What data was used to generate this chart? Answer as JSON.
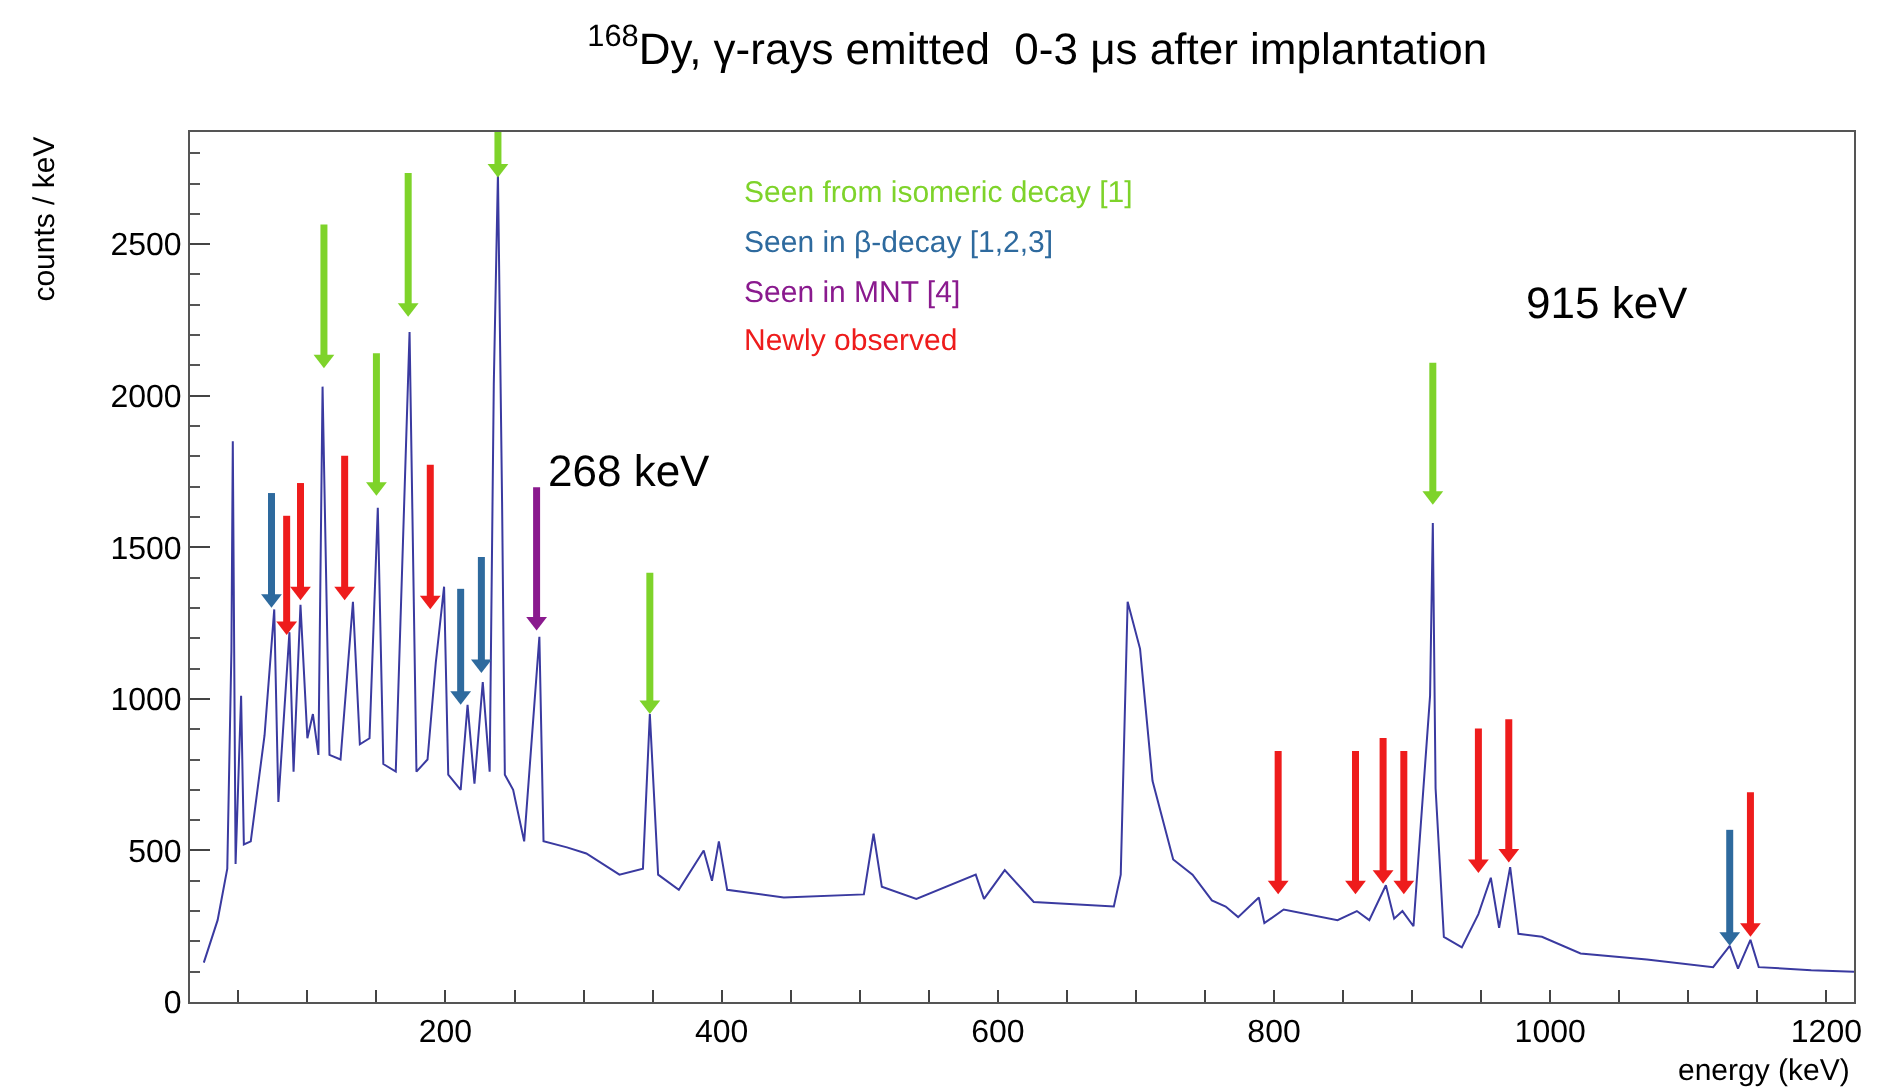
{
  "chart_data": {
    "type": "line",
    "title": "$^{168}$Dy, γ-rays emitted  0-3 μs after implantation",
    "xlabel": "energy (keV)",
    "ylabel": "counts / keV",
    "xlim": [
      15,
      1220
    ],
    "ylim": [
      0,
      2870
    ],
    "xticks": [
      {
        "value": 50,
        "label": null
      },
      {
        "value": 100,
        "label": null
      },
      {
        "value": 150,
        "label": null
      },
      200,
      {
        "value": 250,
        "label": null
      },
      {
        "value": 300,
        "label": null
      },
      {
        "value": 350,
        "label": null
      },
      400,
      {
        "value": 450,
        "label": null
      },
      {
        "value": 500,
        "label": null
      },
      {
        "value": 550,
        "label": null
      },
      600,
      {
        "value": 650,
        "label": null
      },
      {
        "value": 700,
        "label": null
      },
      {
        "value": 750,
        "label": null
      },
      800,
      {
        "value": 850,
        "label": null
      },
      {
        "value": 900,
        "label": null
      },
      {
        "value": 950,
        "label": null
      },
      1000,
      {
        "value": 1050,
        "label": null
      },
      {
        "value": 1100,
        "label": null
      },
      {
        "value": 1150,
        "label": null
      },
      1200
    ],
    "yticks": [
      0,
      500,
      1000,
      1500,
      2000,
      2500
    ],
    "legend": false,
    "marker": "none",
    "line_style": "solid",
    "series": [
      {
        "color": "#3a3aa0",
        "x": [
          25,
          35,
          42,
          45,
          46,
          48,
          52,
          54,
          59,
          69,
          76,
          79,
          87,
          90,
          95,
          100,
          104,
          108,
          111,
          116,
          124,
          133,
          138,
          145,
          151,
          155,
          164,
          174,
          179,
          187,
          193,
          199,
          202,
          211,
          216,
          221,
          227,
          232,
          235,
          238,
          241,
          243,
          249,
          257,
          268,
          271,
          288,
          302,
          326,
          343,
          348,
          354,
          369,
          387,
          393,
          398,
          404,
          445,
          503,
          510,
          516,
          541,
          584,
          590,
          605,
          626,
          684,
          689,
          694,
          703,
          712,
          727,
          741,
          755,
          765,
          774,
          789,
          793,
          807,
          846,
          860,
          869,
          881,
          887,
          893,
          901,
          913,
          915,
          917,
          923,
          936,
          948,
          957,
          963,
          971,
          977,
          994,
          1022,
          1070,
          1118,
          1130,
          1136,
          1145,
          1151,
          1189,
          1220
        ],
        "values": [
          130,
          270,
          440,
          1160,
          1850,
          455,
          1010,
          520,
          530,
          880,
          1295,
          660,
          1220,
          760,
          1310,
          870,
          950,
          815,
          2030,
          815,
          800,
          1320,
          850,
          870,
          1630,
          785,
          760,
          2210,
          760,
          800,
          1120,
          1370,
          750,
          700,
          980,
          720,
          1055,
          760,
          2040,
          2735,
          1650,
          750,
          700,
          530,
          1205,
          530,
          510,
          490,
          420,
          440,
          950,
          420,
          370,
          500,
          400,
          530,
          370,
          345,
          355,
          555,
          380,
          340,
          420,
          340,
          435,
          330,
          315,
          420,
          1320,
          1165,
          730,
          470,
          420,
          335,
          315,
          280,
          345,
          260,
          305,
          270,
          300,
          270,
          385,
          275,
          300,
          250,
          1010,
          1580,
          705,
          215,
          180,
          290,
          410,
          245,
          445,
          225,
          215,
          160,
          140,
          115,
          185,
          110,
          205,
          115,
          105,
          100
        ]
      },
      {
        "type": "scatter",
        "name": "Seen from isomeric decay [1]",
        "color": "#7ed32a",
        "marker": "triangle",
        "x": [
          112,
          150,
          173,
          238,
          348,
          915
        ],
        "values": [
          2120,
          1700,
          2290,
          2750,
          980,
          1670
        ],
        "errors": [
          [
            2120,
            2565
          ],
          [
            1700,
            2140
          ],
          [
            2290,
            2735
          ],
          [
            2750,
            2870
          ],
          [
            980,
            1416
          ],
          [
            1670,
            2109
          ]
        ]
      },
      {
        "type": "scatter",
        "name": "Seen in β-decay [1,2,3]",
        "color": "#2e6a9e",
        "marker": "triangle",
        "x": [
          74,
          211,
          226,
          1130
        ],
        "values": [
          1330,
          1010,
          1115,
          215
        ],
        "errors": [
          [
            1330,
            1679
          ],
          [
            1010,
            1363
          ],
          [
            1115,
            1468
          ],
          [
            215,
            568
          ]
        ]
      },
      {
        "type": "scatter",
        "name": "Seen in MNT [4]",
        "color": "#8a1a8e",
        "marker": "triangle",
        "x": [
          266
        ],
        "values": [
          1255
        ],
        "errors": [
          [
            1255,
            1698
          ]
        ]
      },
      {
        "type": "scatter",
        "name": "Newly observed",
        "color": "#ee1c1c",
        "marker": "triangle",
        "x": [
          85,
          95,
          127,
          189,
          803,
          859,
          879,
          894,
          948,
          970,
          1145
        ],
        "values": [
          1240,
          1355,
          1355,
          1325,
          385,
          385,
          420,
          385,
          455,
          490,
          245
        ],
        "errors": [
          [
            1240,
            1604
          ],
          [
            1355,
            1712
          ],
          [
            1355,
            1802
          ],
          [
            1325,
            1772
          ],
          [
            385,
            828
          ],
          [
            385,
            828
          ],
          [
            420,
            871
          ],
          [
            385,
            828
          ],
          [
            455,
            902
          ],
          [
            490,
            933
          ],
          [
            245,
            692
          ]
        ]
      }
    ],
    "annotations": [
      {
        "text": "268 keV",
        "x": 266,
        "y": 1698
      },
      "915 keV"
    ]
  }
}
